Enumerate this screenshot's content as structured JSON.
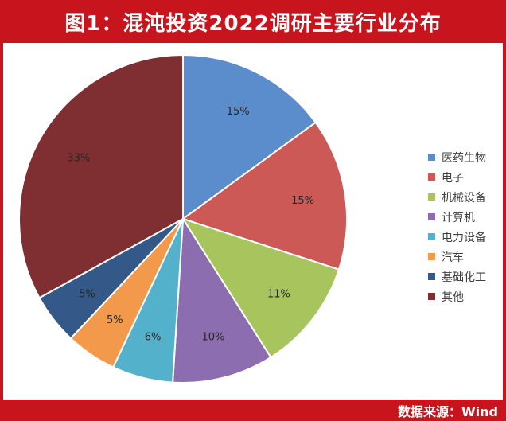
{
  "header": {
    "title": "图1：混沌投资2022调研主要行业分布"
  },
  "footer": {
    "source": "数据来源：Wind"
  },
  "chart_data": {
    "type": "pie",
    "title": "",
    "categories": [
      "医药生物",
      "电子",
      "机械设备",
      "计算机",
      "电力设备",
      "汽车",
      "基础化工",
      "其他"
    ],
    "values": [
      15,
      15,
      11,
      10,
      6,
      5,
      5,
      33
    ],
    "labels": [
      "15%",
      "15%",
      "11%",
      "10%",
      "6%",
      "5%",
      "5%",
      "33%"
    ],
    "colors": [
      "#5b8ccc",
      "#cc5955",
      "#a7c45d",
      "#8c6db0",
      "#53b1cc",
      "#f3994b",
      "#345887",
      "#7f2f31"
    ],
    "legend_position": "right",
    "start_angle": "top",
    "direction": "clockwise"
  }
}
